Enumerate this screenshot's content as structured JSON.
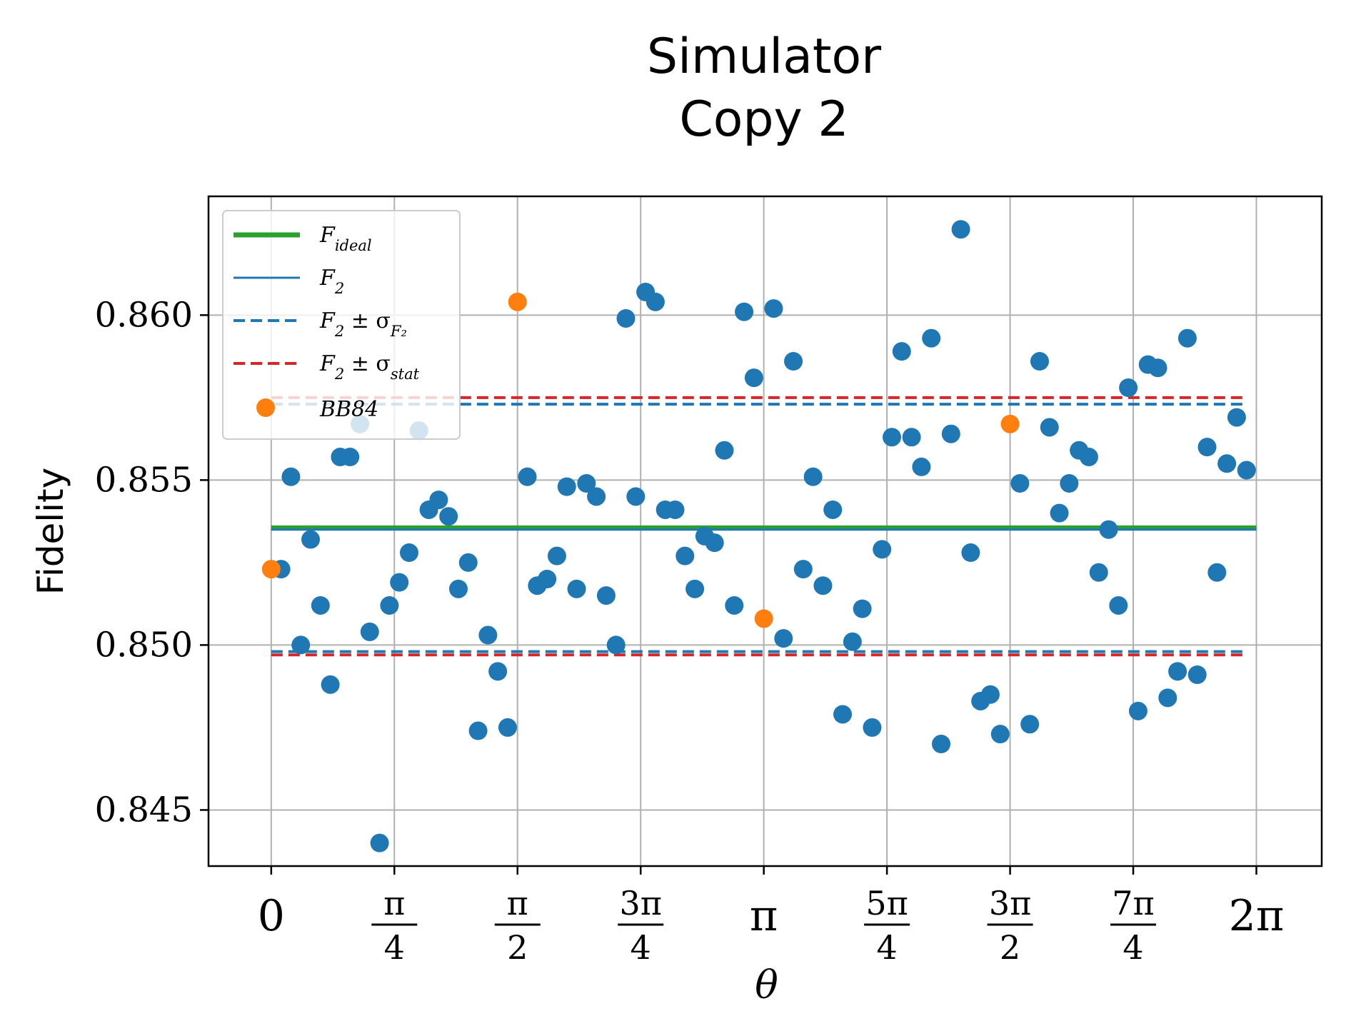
{
  "chart_data": {
    "type": "scatter",
    "title": [
      "Simulator",
      "Copy 2"
    ],
    "xlabel": "θ",
    "ylabel": "Fidelity",
    "xlim": [
      -0.4,
      6.7
    ],
    "ylim": [
      0.8433,
      0.8636
    ],
    "grid": true,
    "legend_placement": "top-left",
    "x_ticks": [
      {
        "value": 0,
        "whole": "0"
      },
      {
        "value": 0.7854,
        "num": "π",
        "den": "4"
      },
      {
        "value": 1.5708,
        "num": "π",
        "den": "2"
      },
      {
        "value": 2.3562,
        "num": "3π",
        "den": "4"
      },
      {
        "value": 3.1416,
        "whole": "π"
      },
      {
        "value": 3.927,
        "num": "5π",
        "den": "4"
      },
      {
        "value": 4.7124,
        "num": "3π",
        "den": "2"
      },
      {
        "value": 5.4978,
        "num": "7π",
        "den": "4"
      },
      {
        "value": 6.2832,
        "whole": "2π"
      }
    ],
    "y_ticks": [
      {
        "value": 0.845,
        "label": "0.845"
      },
      {
        "value": 0.85,
        "label": "0.850"
      },
      {
        "value": 0.855,
        "label": "0.855"
      },
      {
        "value": 0.86,
        "label": "0.860"
      }
    ],
    "lines": [
      {
        "name": "F_ideal",
        "label_main": "F",
        "label_sub": "ideal",
        "y": 0.85355,
        "x_range": [
          0,
          6.2832
        ],
        "color": "#2ca02c",
        "style": "solid",
        "width": 7
      },
      {
        "name": "F_2",
        "label_main": "F",
        "label_sub": "2",
        "y": 0.8535,
        "x_range": [
          0,
          6.2832
        ],
        "color": "#1f77b4",
        "style": "solid",
        "width": 3
      },
      {
        "name": "F_2 ± σ_F2",
        "label_main": "F",
        "label_sub": "2",
        "label_rest": " ± σ",
        "label_sub2": "F₂",
        "y_values": [
          0.8573,
          0.8498
        ],
        "x_range": [
          0,
          6.2
        ],
        "color": "#1f77b4",
        "style": "dashed",
        "width": 4
      },
      {
        "name": "F_2 ± σ_stat",
        "label_main": "F",
        "label_sub": "2",
        "label_rest": " ± σ",
        "label_sub2": "stat",
        "y_values": [
          0.8575,
          0.8497
        ],
        "x_range": [
          0,
          6.2
        ],
        "color": "#d62728",
        "style": "dashed",
        "width": 4
      }
    ],
    "series": [
      {
        "name": "F_2 points",
        "color": "#1f77b4",
        "points": [
          [
            0.0628,
            0.8523
          ],
          [
            0.1257,
            0.8551
          ],
          [
            0.1885,
            0.85
          ],
          [
            0.2513,
            0.8532
          ],
          [
            0.3142,
            0.8512
          ],
          [
            0.377,
            0.8488
          ],
          [
            0.4398,
            0.8557
          ],
          [
            0.5027,
            0.8557
          ],
          [
            0.5655,
            0.8567
          ],
          [
            0.6283,
            0.8504
          ],
          [
            0.6912,
            0.844
          ],
          [
            0.754,
            0.8512
          ],
          [
            0.8168,
            0.8519
          ],
          [
            0.8796,
            0.8528
          ],
          [
            0.9425,
            0.8565
          ],
          [
            1.0053,
            0.8541
          ],
          [
            1.0681,
            0.8544
          ],
          [
            1.131,
            0.8539
          ],
          [
            1.1938,
            0.8517
          ],
          [
            1.2566,
            0.8525
          ],
          [
            1.3195,
            0.8474
          ],
          [
            1.3823,
            0.8503
          ],
          [
            1.4451,
            0.8492
          ],
          [
            1.508,
            0.8475
          ],
          [
            1.6336,
            0.8551
          ],
          [
            1.6965,
            0.8518
          ],
          [
            1.7593,
            0.852
          ],
          [
            1.8221,
            0.8527
          ],
          [
            1.885,
            0.8548
          ],
          [
            1.9478,
            0.8517
          ],
          [
            2.0106,
            0.8549
          ],
          [
            2.0735,
            0.8545
          ],
          [
            2.1363,
            0.8515
          ],
          [
            2.1991,
            0.85
          ],
          [
            2.2619,
            0.8599
          ],
          [
            2.3248,
            0.8545
          ],
          [
            2.3876,
            0.8607
          ],
          [
            2.4504,
            0.8604
          ],
          [
            2.5133,
            0.8541
          ],
          [
            2.5761,
            0.8541
          ],
          [
            2.6389,
            0.8527
          ],
          [
            2.7018,
            0.8517
          ],
          [
            2.7646,
            0.8533
          ],
          [
            2.8274,
            0.8531
          ],
          [
            2.8903,
            0.8559
          ],
          [
            2.9531,
            0.8512
          ],
          [
            3.0159,
            0.8601
          ],
          [
            3.0788,
            0.8581
          ],
          [
            3.2044,
            0.8602
          ],
          [
            3.2673,
            0.8502
          ],
          [
            3.3301,
            0.8586
          ],
          [
            3.3929,
            0.8523
          ],
          [
            3.4558,
            0.8551
          ],
          [
            3.5186,
            0.8518
          ],
          [
            3.5814,
            0.8541
          ],
          [
            3.6442,
            0.8479
          ],
          [
            3.7071,
            0.8501
          ],
          [
            3.7699,
            0.8511
          ],
          [
            3.8327,
            0.8475
          ],
          [
            3.8956,
            0.8529
          ],
          [
            3.9584,
            0.8563
          ],
          [
            4.0212,
            0.8589
          ],
          [
            4.0841,
            0.8563
          ],
          [
            4.1469,
            0.8554
          ],
          [
            4.2097,
            0.8593
          ],
          [
            4.2726,
            0.847
          ],
          [
            4.3354,
            0.8564
          ],
          [
            4.3982,
            0.8626
          ],
          [
            4.4611,
            0.8528
          ],
          [
            4.5239,
            0.8483
          ],
          [
            4.5867,
            0.8485
          ],
          [
            4.6496,
            0.8473
          ],
          [
            4.7752,
            0.8549
          ],
          [
            4.8381,
            0.8476
          ],
          [
            4.9009,
            0.8586
          ],
          [
            4.9637,
            0.8566
          ],
          [
            5.0265,
            0.854
          ],
          [
            5.0894,
            0.8549
          ],
          [
            5.1522,
            0.8559
          ],
          [
            5.215,
            0.8557
          ],
          [
            5.2779,
            0.8522
          ],
          [
            5.3407,
            0.8535
          ],
          [
            5.4035,
            0.8512
          ],
          [
            5.4664,
            0.8578
          ],
          [
            5.5292,
            0.848
          ],
          [
            5.592,
            0.8585
          ],
          [
            5.6549,
            0.8584
          ],
          [
            5.7177,
            0.8484
          ],
          [
            5.7805,
            0.8492
          ],
          [
            5.8434,
            0.8593
          ],
          [
            5.9062,
            0.8491
          ],
          [
            5.969,
            0.856
          ],
          [
            6.0319,
            0.8522
          ],
          [
            6.0947,
            0.8555
          ],
          [
            6.1575,
            0.8569
          ],
          [
            6.2204,
            0.8553
          ]
        ]
      },
      {
        "name": "BB84",
        "color": "#ff7f0e",
        "points": [
          [
            0,
            0.8523
          ],
          [
            1.5708,
            0.8604
          ],
          [
            3.1416,
            0.8508
          ],
          [
            4.7124,
            0.8567
          ]
        ]
      }
    ]
  }
}
